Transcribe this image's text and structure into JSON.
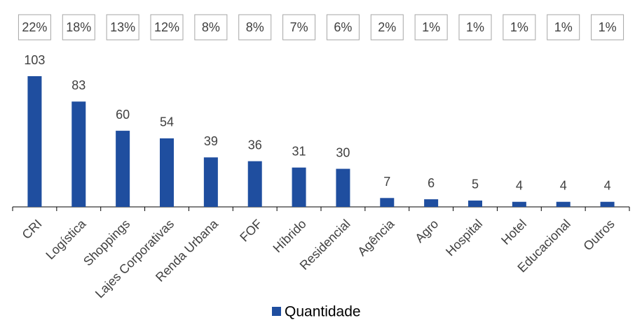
{
  "chart_data": {
    "type": "bar",
    "categories": [
      "CRI",
      "Logística",
      "Shoppings",
      "Lajes Corporativas",
      "Renda Urbana",
      "FOF",
      "Híbrido",
      "Residencial",
      "Agência",
      "Agro",
      "Hospital",
      "Hotel",
      "Educacional",
      "Outros"
    ],
    "series": [
      {
        "name": "Quantidade",
        "color": "#1f4e9f",
        "values": [
          103,
          83,
          60,
          54,
          39,
          36,
          31,
          30,
          7,
          6,
          5,
          4,
          4,
          4
        ]
      }
    ],
    "share_labels": [
      "22%",
      "18%",
      "13%",
      "12%",
      "8%",
      "8%",
      "7%",
      "6%",
      "2%",
      "1%",
      "1%",
      "1%",
      "1%",
      "1%"
    ],
    "legend": "bottom"
  }
}
